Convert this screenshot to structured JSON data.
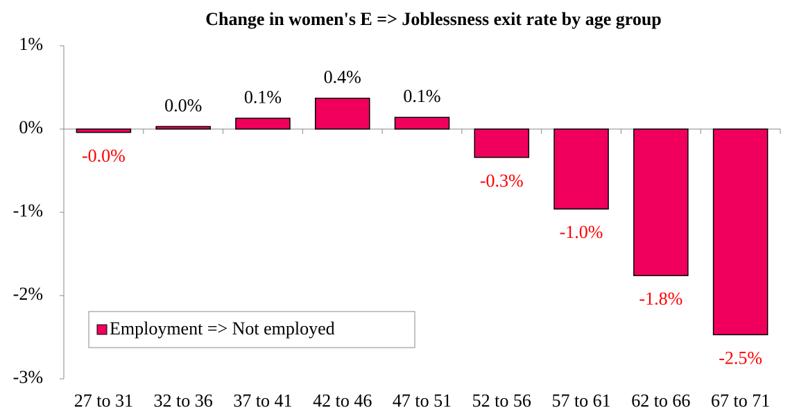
{
  "chart_data": {
    "type": "bar",
    "title": "Change in women's E => Joblessness exit rate by age group",
    "categories": [
      "27 to 31",
      "32 to 36",
      "37 to 41",
      "42 to 46",
      "47 to 51",
      "52 to 56",
      "57 to 61",
      "62 to 66",
      "67 to 71"
    ],
    "series": [
      {
        "name": "Employment => Not employed",
        "color": "#f0005c",
        "values": [
          -0.04,
          0.03,
          0.13,
          0.37,
          0.14,
          -0.34,
          -0.96,
          -1.76,
          -2.47
        ],
        "value_labels": [
          "-0.0%",
          "0.0%",
          "0.1%",
          "0.4%",
          "0.1%",
          "-0.3%",
          "-1.0%",
          "-1.8%",
          "-2.5%"
        ]
      }
    ],
    "ylim": [
      -3,
      1
    ],
    "yticks": [
      {
        "value": -3,
        "label": "-3%"
      },
      {
        "value": -2,
        "label": "-2%"
      },
      {
        "value": -1,
        "label": "-1%"
      },
      {
        "value": 0,
        "label": "0%"
      },
      {
        "value": 1,
        "label": "1%"
      }
    ],
    "grid": false,
    "legend": "lower left",
    "label_color": "#000000",
    "negative_label_color": "#ff0000"
  }
}
